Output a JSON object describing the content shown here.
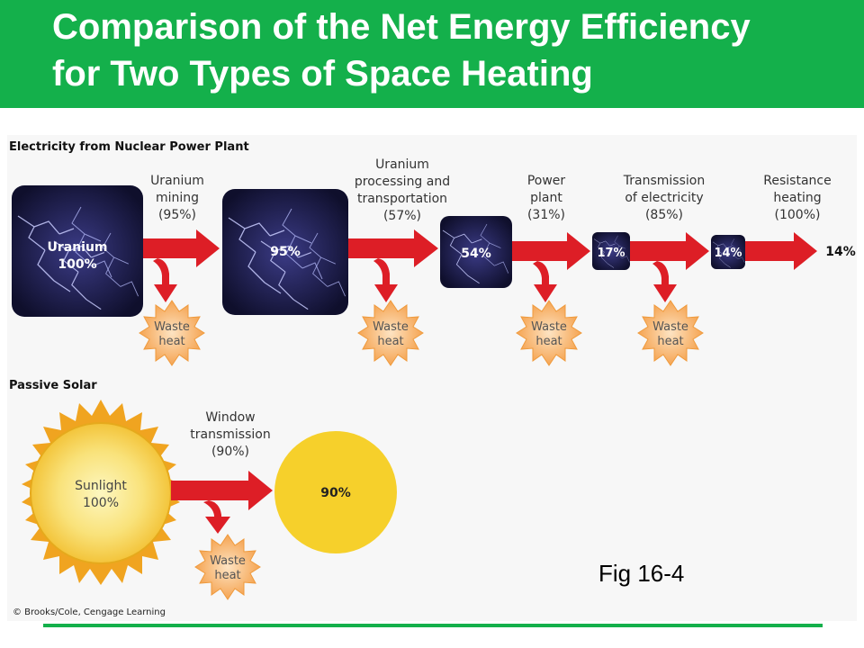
{
  "title": {
    "line1": "Comparison of the Net Energy Efficiency",
    "line2": "for Two Types of Space Heating"
  },
  "nuclear": {
    "heading": "Electricity from Nuclear Power Plant",
    "boxes": [
      {
        "line1": "Uranium",
        "line2": "100%"
      },
      {
        "line1": "95%"
      },
      {
        "line1": "54%"
      },
      {
        "line1": "17%"
      },
      {
        "line1": "14%"
      }
    ],
    "steps": [
      {
        "lines": [
          "Uranium",
          "mining",
          "(95%)"
        ]
      },
      {
        "lines": [
          "Uranium",
          "processing and",
          "transportation",
          "(57%)"
        ]
      },
      {
        "lines": [
          "Power",
          "plant",
          "(31%)"
        ]
      },
      {
        "lines": [
          "Transmission",
          "of electricity",
          "(85%)"
        ]
      },
      {
        "lines": [
          "Resistance",
          "heating",
          "(100%)"
        ]
      }
    ],
    "final_output": "14%"
  },
  "solar": {
    "heading": "Passive Solar",
    "source": {
      "line1": "Sunlight",
      "line2": "100%"
    },
    "step": {
      "lines": [
        "Window",
        "transmission",
        "(90%)"
      ]
    },
    "output": "90%"
  },
  "waste_heat": {
    "line1": "Waste",
    "line2": "heat"
  },
  "figure_label": "Fig 16-4",
  "credit": "© Brooks/Cole, Cengage Learning",
  "colors": {
    "title_bar": "#14b04b",
    "arrow": "#dd1e26",
    "sun": "#f6d02b",
    "sun_rays": "#f0a420",
    "waste_heat": "#f7b267",
    "box": "#16163a"
  }
}
